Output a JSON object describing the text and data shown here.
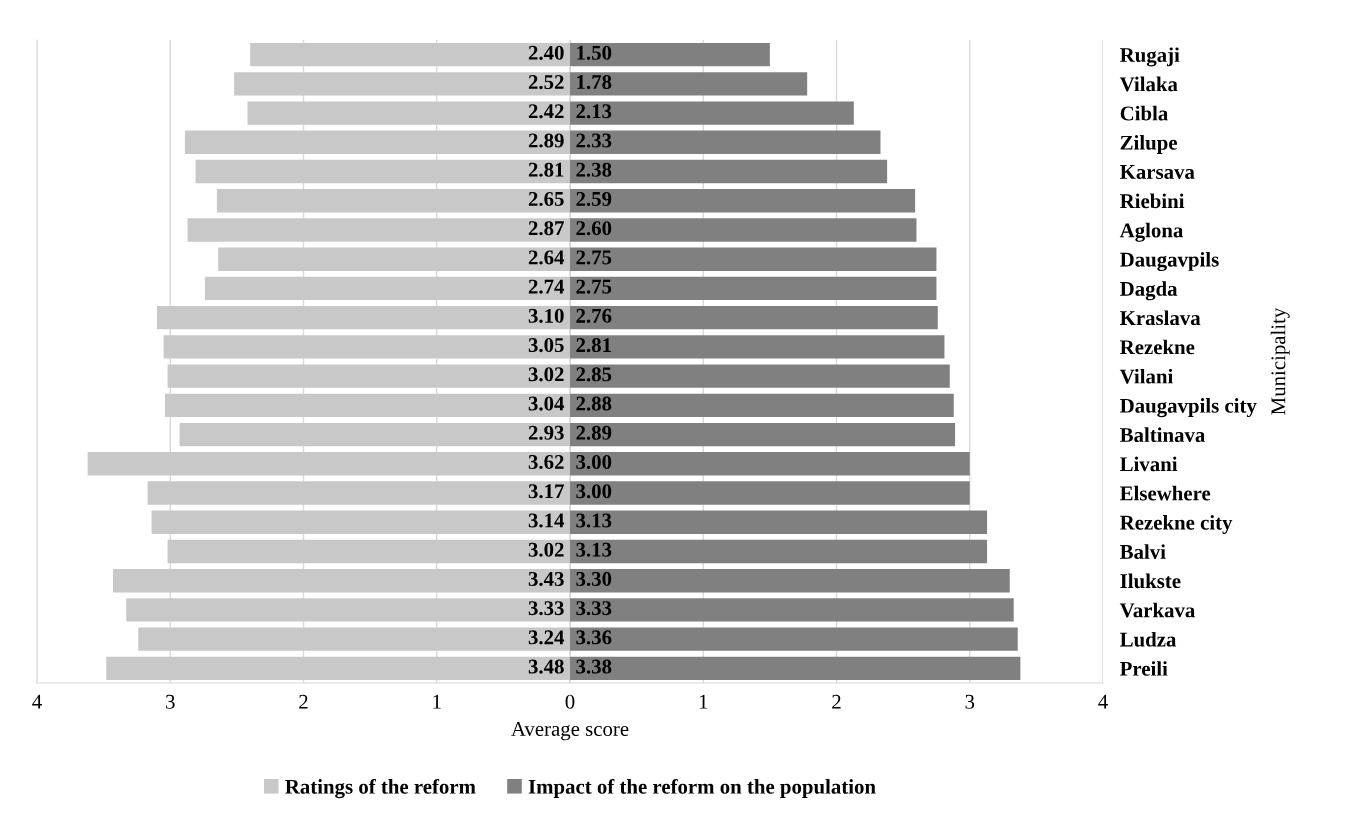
{
  "chart_data": {
    "type": "bar",
    "orientation": "horizontal",
    "xlabel": "Average score",
    "ylabel": "Municipality",
    "categories": [
      "Rugaji",
      "Vilaka",
      "Cibla",
      "Zilupe",
      "Karsava",
      "Riebini",
      "Aglona",
      "Daugavpils",
      "Dagda",
      "Kraslava",
      "Rezekne",
      "Vilani",
      "Daugavpils city",
      "Baltinava",
      "Livani",
      "Elsewhere",
      "Rezekne city",
      "Balvi",
      "Ilukste",
      "Varkava",
      "Ludza",
      "Preili"
    ],
    "series": [
      {
        "name": "Ratings of the reform",
        "color": "#c8c8c8",
        "values": [
          2.4,
          2.52,
          2.42,
          2.89,
          2.81,
          2.65,
          2.87,
          2.64,
          2.74,
          3.1,
          3.05,
          3.02,
          3.04,
          2.93,
          3.62,
          3.17,
          3.14,
          3.02,
          3.43,
          3.33,
          3.24,
          3.48
        ],
        "base": [
          -2.4,
          -2.52,
          -2.42,
          -2.89,
          -2.81,
          -2.65,
          -2.87,
          -2.64,
          -2.74,
          -3.1,
          -3.05,
          -3.02,
          -3.04,
          -2.93,
          -3.62,
          -3.17,
          -3.14,
          -3.02,
          -3.43,
          -3.33,
          -3.24,
          -3.48
        ],
        "value_labels": [
          "2.40",
          "2.52",
          "2.42",
          "2.89",
          "2.81",
          "2.65",
          "2.87",
          "2.64",
          "2.74",
          "3.10",
          "3.05",
          "3.02",
          "3.04",
          "2.93",
          "3.62",
          "3.17",
          "3.14",
          "3.02",
          "3.43",
          "3.33",
          "3.24",
          "3.48"
        ]
      },
      {
        "name": "Impact of the reform on the population",
        "color": "#808080",
        "values": [
          1.5,
          1.78,
          2.13,
          2.33,
          2.38,
          2.59,
          2.6,
          2.75,
          2.75,
          2.76,
          2.81,
          2.85,
          2.88,
          2.89,
          3.0,
          3.0,
          3.13,
          3.13,
          3.3,
          3.33,
          3.36,
          3.38
        ],
        "value_labels": [
          "1.50",
          "1.78",
          "2.13",
          "2.33",
          "2.38",
          "2.59",
          "2.60",
          "2.75",
          "2.75",
          "2.76",
          "2.81",
          "2.85",
          "2.88",
          "2.89",
          "3.00",
          "3.00",
          "3.13",
          "3.13",
          "3.30",
          "3.33",
          "3.36",
          "3.38"
        ]
      }
    ],
    "xlim": [
      -4,
      4
    ],
    "xticks": [
      {
        "value": -4,
        "label": "4"
      },
      {
        "value": -3,
        "label": "3"
      },
      {
        "value": -2,
        "label": "2"
      },
      {
        "value": -1,
        "label": "1"
      },
      0,
      1,
      2,
      3,
      4
    ],
    "grid": "x",
    "legend": "bottom"
  }
}
